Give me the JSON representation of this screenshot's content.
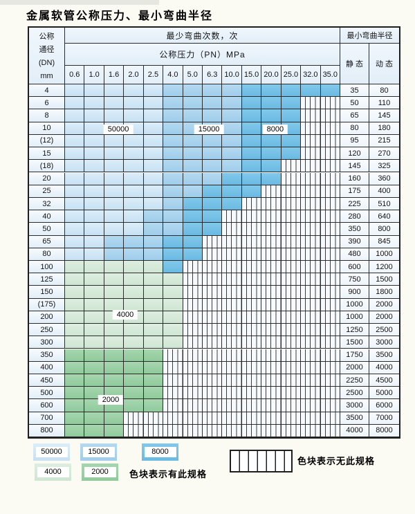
{
  "title": "金属软管公称压力、最小弯曲半径",
  "chart_data": {
    "type": "table",
    "title": "金属软管公称压力、最小弯曲半径",
    "pressure_columns_MPa": [
      "0.6",
      "1.0",
      "1.6",
      "2.0",
      "2.5",
      "4.0",
      "5.0",
      "6.3",
      "10.0",
      "15.0",
      "20.0",
      "25.0",
      "32.0",
      "35.0"
    ],
    "zone_codes": {
      "L": 50000,
      "M": 15000,
      "D": 8000,
      "G": 4000,
      "E": 2000,
      "H": "no-spec"
    },
    "rows": [
      {
        "dn": "4",
        "zones": "LLLLLMMMMDDDDD",
        "static": "35",
        "dynamic": "80"
      },
      {
        "dn": "6",
        "zones": "LLLLLMMMMDDDHH",
        "static": "50",
        "dynamic": "110"
      },
      {
        "dn": "8",
        "zones": "LLLLLMMMMDDDHH",
        "static": "65",
        "dynamic": "145"
      },
      {
        "dn": "10",
        "zones": "LLLLLMMMMDDDHH",
        "static": "80",
        "dynamic": "180"
      },
      {
        "dn": "(12)",
        "zones": "LLLLLMMMMDDDHH",
        "static": "95",
        "dynamic": "215"
      },
      {
        "dn": "15",
        "zones": "LLLLLMMMMDDDHH",
        "static": "120",
        "dynamic": "270"
      },
      {
        "dn": "(18)",
        "zones": "LLLLLMMMMDDHHH",
        "static": "145",
        "dynamic": "325"
      },
      {
        "dn": "20",
        "zones": "LLLLLMMMDDDHHH",
        "static": "160",
        "dynamic": "360"
      },
      {
        "dn": "25",
        "zones": "LLLLLMMDDDHHHH",
        "static": "175",
        "dynamic": "400"
      },
      {
        "dn": "32",
        "zones": "LLLLLMDDDHHHHH",
        "static": "225",
        "dynamic": "510"
      },
      {
        "dn": "40",
        "zones": "LLLLMMDDHHHHHH",
        "static": "280",
        "dynamic": "640"
      },
      {
        "dn": "50",
        "zones": "LLLLMMDDHHHHHH",
        "static": "350",
        "dynamic": "800"
      },
      {
        "dn": "65",
        "zones": "LLMMMDDHHHHHHH",
        "static": "390",
        "dynamic": "845"
      },
      {
        "dn": "80",
        "zones": "LLMMMDDHHHHHHH",
        "static": "480",
        "dynamic": "1000"
      },
      {
        "dn": "100",
        "zones": "GGGGGDHHHHHHHH",
        "static": "600",
        "dynamic": "1200"
      },
      {
        "dn": "125",
        "zones": "GGGGGGHHHHHHHH",
        "static": "750",
        "dynamic": "1500"
      },
      {
        "dn": "150",
        "zones": "GGGGGGHHHHHHHH",
        "static": "900",
        "dynamic": "1800"
      },
      {
        "dn": "(175)",
        "zones": "GGGGGGHHHHHHHH",
        "static": "1000",
        "dynamic": "2000"
      },
      {
        "dn": "200",
        "zones": "GGGGGGHHHHHHHH",
        "static": "1000",
        "dynamic": "2000"
      },
      {
        "dn": "250",
        "zones": "GGGGGGHHHHHHHH",
        "static": "1250",
        "dynamic": "2500"
      },
      {
        "dn": "300",
        "zones": "GGGGGGHHHHHHHH",
        "static": "1500",
        "dynamic": "3000"
      },
      {
        "dn": "350",
        "zones": "EEEEEHHHHHHHHH",
        "static": "1750",
        "dynamic": "3500"
      },
      {
        "dn": "400",
        "zones": "EEEEEHHHHHHHHH",
        "static": "2000",
        "dynamic": "4000"
      },
      {
        "dn": "450",
        "zones": "EEEEEHHHHHHHHH",
        "static": "2250",
        "dynamic": "4500"
      },
      {
        "dn": "500",
        "zones": "EEEEEHHHHHHHHH",
        "static": "2500",
        "dynamic": "5000"
      },
      {
        "dn": "600",
        "zones": "EEEEEHHHHHHHHH",
        "static": "3000",
        "dynamic": "6000"
      },
      {
        "dn": "700",
        "zones": "EEEHHHHHHHHHHH",
        "static": "3500",
        "dynamic": "7000"
      },
      {
        "dn": "800",
        "zones": "EEEHHHHHHHHHHH",
        "static": "4000",
        "dynamic": "8000"
      }
    ]
  },
  "header": {
    "dn_lines": [
      "公称",
      "通径",
      "(DN)",
      "mm"
    ],
    "cycles": "最少弯曲次数，次",
    "pressure": "公称压力（PN）MPa",
    "radius": "最小弯曲半径",
    "static": "静 态",
    "dynamic": "动 态"
  },
  "zone_labels": [
    {
      "text": "50000",
      "col_pos": 2.71,
      "row_pos": 3.57
    },
    {
      "text": "15000",
      "col_pos": 7.32,
      "row_pos": 3.57
    },
    {
      "text": "8000",
      "col_pos": 10.69,
      "row_pos": 3.57
    },
    {
      "text": "4000",
      "col_pos": 3.06,
      "row_pos": 18.28
    },
    {
      "text": "2000",
      "col_pos": 2.32,
      "row_pos": 25.03
    }
  ],
  "legend": {
    "items": [
      {
        "label": "50000",
        "code": "L"
      },
      {
        "label": "15000",
        "code": "M"
      },
      {
        "label": "8000",
        "code": "D"
      },
      {
        "label": "4000",
        "code": "G"
      },
      {
        "label": "2000",
        "code": "E"
      }
    ],
    "has_spec_text": "色块表示有此规格",
    "no_spec_text": "色块表示无此规格"
  },
  "colors": {
    "c50000": "#cfe4f4",
    "c15000": "#a8d3ee",
    "c8000": "#74c1e6",
    "c4000": "#d6ead8",
    "c2000": "#9bd0a4",
    "header_bg": "#e9f2fa",
    "grid": "#2b2b2b",
    "hatch_bg": "#f6fafd",
    "page_bg": "#fbfbf3"
  }
}
